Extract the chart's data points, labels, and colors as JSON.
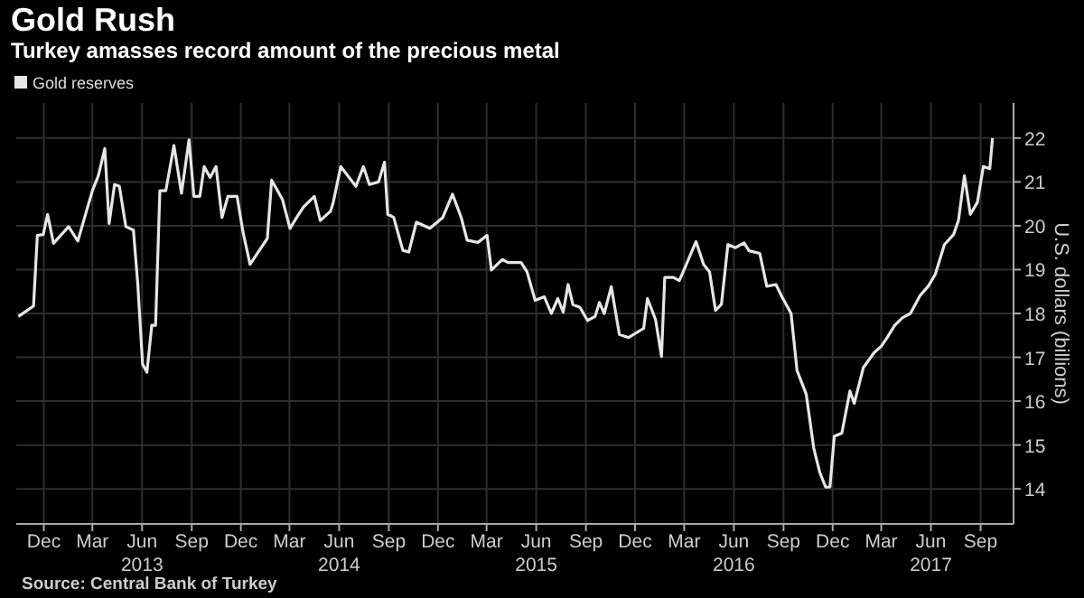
{
  "chart_data": {
    "type": "line",
    "title": "Gold Rush",
    "subtitle": "Turkey amasses record amount of the precious metal",
    "ylabel": "U.S. dollars (billions)",
    "annotations": [
      "Source: Central Bank of Turkey"
    ],
    "legend": "top left",
    "grid": true,
    "marker": "none",
    "line_style": "solid",
    "xlim": [
      "2012-10-25",
      "2017-11-15"
    ],
    "xticks": [
      {
        "value": "2012-12-15",
        "label": "Dec"
      },
      {
        "value": "2013-03-15",
        "label": "Mar"
      },
      {
        "value": "2013-06-15",
        "label": "Jun\n2013"
      },
      {
        "value": "2013-09-15",
        "label": "Sep"
      },
      {
        "value": "2013-12-15",
        "label": "Dec"
      },
      {
        "value": "2014-03-15",
        "label": "Mar"
      },
      {
        "value": "2014-06-15",
        "label": "Jun\n2014"
      },
      {
        "value": "2014-09-15",
        "label": "Sep"
      },
      {
        "value": "2014-12-15",
        "label": "Dec"
      },
      {
        "value": "2015-03-15",
        "label": "Mar"
      },
      {
        "value": "2015-06-15",
        "label": "Jun\n2015"
      },
      {
        "value": "2015-09-15",
        "label": "Sep"
      },
      {
        "value": "2015-12-15",
        "label": "Dec"
      },
      {
        "value": "2016-03-15",
        "label": "Mar"
      },
      {
        "value": "2016-06-15",
        "label": "Jun\n2016"
      },
      {
        "value": "2016-09-15",
        "label": "Sep"
      },
      {
        "value": "2016-12-15",
        "label": "Dec"
      },
      {
        "value": "2017-03-15",
        "label": "Mar"
      },
      {
        "value": "2017-06-15",
        "label": "Jun\n2017"
      },
      {
        "value": "2017-09-15",
        "label": "Sep"
      }
    ],
    "ylim": [
      13.2,
      22.8
    ],
    "yticks": [
      14,
      15,
      16,
      17,
      18,
      19,
      20,
      21,
      22
    ],
    "x": [
      "2012-10-29",
      "2012-11-26",
      "2012-12-03",
      "2012-12-14",
      "2012-12-22",
      "2013-01-02",
      "2013-01-30",
      "2013-02-16",
      "2013-02-27",
      "2013-03-15",
      "2013-03-26",
      "2013-04-07",
      "2013-04-15",
      "2013-04-25",
      "2013-05-04",
      "2013-05-16",
      "2013-05-30",
      "2013-06-07",
      "2013-06-16",
      "2013-06-24",
      "2013-07-03",
      "2013-07-10",
      "2013-07-18",
      "2013-07-29",
      "2013-08-13",
      "2013-08-27",
      "2013-09-10",
      "2013-09-19",
      "2013-09-30",
      "2013-10-08",
      "2013-10-19",
      "2013-10-30",
      "2013-11-10",
      "2013-11-21",
      "2013-12-08",
      "2013-12-19",
      "2014-01-01",
      "2014-01-16",
      "2014-02-02",
      "2014-02-10",
      "2014-03-02",
      "2014-03-16",
      "2014-03-29",
      "2014-04-10",
      "2014-04-30",
      "2014-05-11",
      "2014-05-30",
      "2014-06-04",
      "2014-06-18",
      "2014-07-16",
      "2014-07-30",
      "2014-08-10",
      "2014-08-27",
      "2014-09-07",
      "2014-09-13",
      "2014-09-24",
      "2014-10-11",
      "2014-10-22",
      "2014-11-05",
      "2014-11-30",
      "2014-12-24",
      "2015-01-11",
      "2015-01-27",
      "2015-02-07",
      "2015-02-27",
      "2015-03-16",
      "2015-03-24",
      "2015-04-13",
      "2015-04-24",
      "2015-05-18",
      "2015-05-29",
      "2015-06-13",
      "2015-06-30",
      "2015-07-13",
      "2015-07-25",
      "2015-08-04",
      "2015-08-13",
      "2015-08-22",
      "2015-09-04",
      "2015-09-18",
      "2015-10-02",
      "2015-10-10",
      "2015-10-19",
      "2015-11-01",
      "2015-11-16",
      "2015-12-03",
      "2015-12-31",
      "2016-01-07",
      "2016-01-22",
      "2016-02-02",
      "2016-02-08",
      "2016-02-24",
      "2016-03-06",
      "2016-03-18",
      "2016-04-06",
      "2016-04-20",
      "2016-05-01",
      "2016-05-12",
      "2016-05-23",
      "2016-06-04",
      "2016-06-18",
      "2016-07-04",
      "2016-07-13",
      "2016-08-02",
      "2016-08-15",
      "2016-09-01",
      "2016-09-12",
      "2016-09-29",
      "2016-10-10",
      "2016-10-27",
      "2016-11-10",
      "2016-11-21",
      "2016-12-02",
      "2016-12-10",
      "2016-12-18",
      "2017-01-01",
      "2017-01-16",
      "2017-01-24",
      "2017-02-10",
      "2017-03-02",
      "2017-03-15",
      "2017-03-26",
      "2017-04-09",
      "2017-04-23",
      "2017-05-08",
      "2017-05-26",
      "2017-06-10",
      "2017-06-23",
      "2017-07-10",
      "2017-07-27",
      "2017-08-05",
      "2017-08-16",
      "2017-08-27",
      "2017-09-09",
      "2017-09-20",
      "2017-10-02",
      "2017-10-07"
    ],
    "series": [
      {
        "name": "Gold reserves",
        "color": "#e6e6e6",
        "values": [
          17.93,
          18.17,
          19.78,
          19.8,
          20.26,
          19.6,
          19.98,
          19.65,
          20.12,
          20.8,
          21.14,
          21.76,
          20.05,
          20.94,
          20.9,
          19.98,
          19.9,
          18.68,
          16.84,
          16.66,
          17.73,
          17.73,
          20.8,
          20.8,
          21.83,
          20.74,
          21.96,
          20.67,
          20.67,
          21.35,
          21.1,
          21.35,
          20.19,
          20.67,
          20.67,
          19.85,
          19.12,
          19.4,
          19.71,
          21.04,
          20.6,
          19.94,
          20.2,
          20.43,
          20.67,
          20.12,
          20.33,
          20.53,
          21.35,
          20.9,
          21.35,
          20.94,
          21.0,
          21.45,
          20.26,
          20.19,
          19.44,
          19.4,
          20.08,
          19.94,
          20.19,
          20.72,
          20.19,
          19.67,
          19.62,
          19.78,
          18.99,
          19.23,
          19.16,
          19.16,
          18.95,
          18.3,
          18.38,
          18.0,
          18.34,
          18.03,
          18.66,
          18.2,
          18.14,
          17.84,
          17.93,
          18.25,
          18.0,
          18.61,
          17.52,
          17.45,
          17.66,
          18.34,
          17.86,
          17.02,
          18.82,
          18.82,
          18.75,
          19.09,
          19.64,
          19.12,
          18.95,
          18.07,
          18.21,
          19.57,
          19.5,
          19.61,
          19.43,
          19.37,
          18.62,
          18.66,
          18.38,
          18.0,
          16.7,
          16.16,
          14.93,
          14.38,
          14.04,
          14.04,
          15.2,
          15.27,
          16.23,
          15.95,
          16.77,
          17.11,
          17.25,
          17.45,
          17.73,
          17.9,
          18.0,
          18.41,
          18.62,
          18.89,
          19.57,
          19.8,
          20.12,
          21.14,
          20.26,
          20.53,
          21.35,
          21.3,
          22.0
        ]
      }
    ]
  }
}
